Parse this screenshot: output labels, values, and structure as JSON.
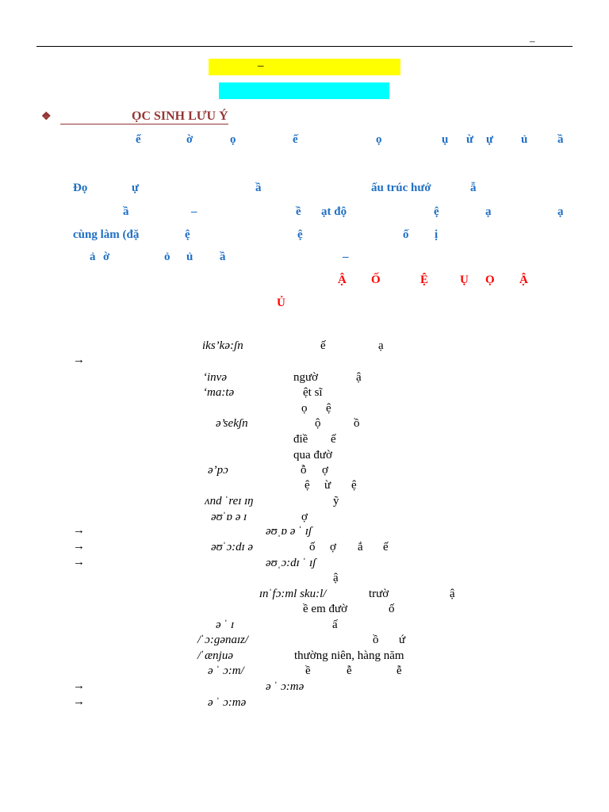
{
  "header": {
    "dash": "–"
  },
  "banner": {
    "yellow_text": "–",
    "cyan_text": ""
  },
  "note": {
    "bullet": "❖",
    "title": "ỌC SINH LƯU Ý",
    "line1": [
      "ế",
      "ờ",
      "ọ",
      "ế",
      "ọ",
      "ụ",
      "ừ",
      "ự",
      "ủ",
      "ầ"
    ],
    "line2": [
      "Đọ",
      "ự",
      "ầ",
      "ấu trúc hướ",
      "ẫ"
    ],
    "line3": [
      "ầ",
      "–",
      "ề",
      "ạt độ",
      "ệ",
      "ạ",
      "ạ"
    ],
    "line4": [
      "cùng làm (đặ",
      "ệ",
      "ệ",
      "ố",
      "ị"
    ],
    "line5": [
      "ả",
      "ờ",
      "ỏ",
      "ủ",
      "ầ",
      "–"
    ],
    "red1": [
      "Ậ",
      "Ố",
      "Ệ",
      "Ụ",
      "Ọ",
      "Ậ"
    ],
    "red2": "Ủ"
  },
  "vocab": {
    "arrow": "→",
    "rows": [
      {
        "ipa": "iks’kə:ʃn",
        "mean": [
          "ế",
          "ạ"
        ]
      },
      {
        "ipa": "‘invə",
        "mean": [
          "ngườ",
          "ậ"
        ]
      },
      {
        "ipa": "‘ma:tə",
        "mean": [
          "ệt sĩ"
        ]
      },
      {
        "ipa": "",
        "mean": [
          "ọ",
          "ệ"
        ]
      },
      {
        "ipa": "ə’sekʃn",
        "mean": [
          "ộ",
          "ồ"
        ]
      },
      {
        "ipa": "",
        "mean": [
          "điề",
          "ế"
        ]
      },
      {
        "ipa": "",
        "mean": [
          "qua đườ"
        ]
      },
      {
        "ipa": "ə’pɔ",
        "mean": [
          "ỗ",
          "ợ"
        ]
      },
      {
        "ipa": "",
        "mean": [
          "ệ",
          "ừ",
          "ệ"
        ]
      },
      {
        "ipa": "ʌnd ˈreɪ ɪŋ",
        "mean": [
          "ỹ"
        ]
      },
      {
        "ipa": "əʊˈɒ ə ɪ",
        "mean": [
          "ợ"
        ]
      },
      {
        "ipa": "əʊˌɒ ə ˈ ɪʃ",
        "mean": []
      },
      {
        "ipa": "əʊˈɔ:dɪ ə",
        "mean": [
          "ố",
          "ợ",
          "ắ",
          "ế"
        ]
      },
      {
        "ipa": "əʊˌɔ:dɪ ˈ ɪʃ",
        "mean": []
      },
      {
        "ipa": "",
        "mean": [
          "ậ"
        ]
      },
      {
        "ipa": "ɪnˈfɔ:ml sku:l/",
        "mean": [
          "trườ",
          "ậ"
        ]
      },
      {
        "ipa": "",
        "mean": [
          "ề em đườ",
          "ố"
        ]
      },
      {
        "ipa": "ə ˈ ɪ",
        "mean": [
          "ấ"
        ]
      },
      {
        "ipa": "/ˈɔ:gənaɪz/",
        "mean": [
          "ồ",
          "ứ"
        ]
      },
      {
        "ipa": "/ˈænjuə",
        "mean": [
          "thường niên, hàng năm"
        ]
      },
      {
        "ipa": "ə ˈ ɔ:m/",
        "mean": [
          "ề",
          "ễ",
          "ễ"
        ]
      },
      {
        "ipa": "ə ˈ ɔ:mə",
        "mean": []
      },
      {
        "ipa": "ə ˈ ɔ:mə",
        "mean": []
      }
    ]
  }
}
